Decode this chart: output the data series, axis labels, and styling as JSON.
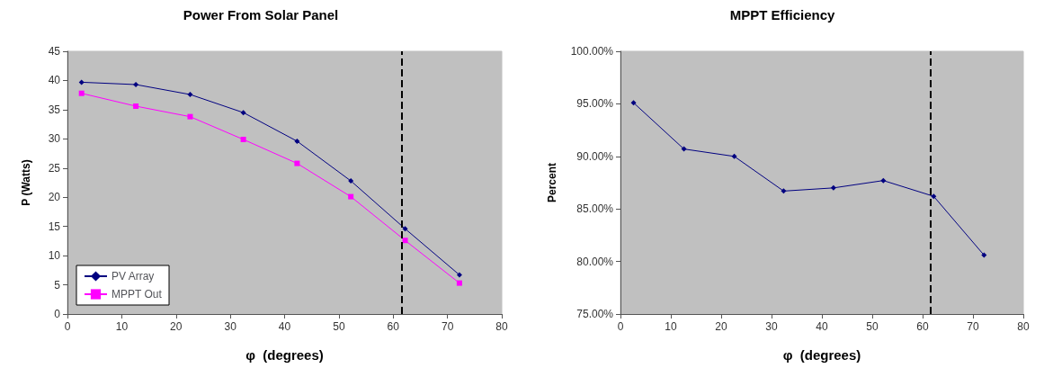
{
  "chart_data": [
    {
      "type": "line",
      "title": "Power From Solar Panel",
      "xlabel": "φ  (degrees)",
      "ylabel": "P (Watts)",
      "x": [
        2.6,
        12.6,
        22.6,
        32.4,
        42.3,
        52.2,
        62.2,
        72.2
      ],
      "series": [
        {
          "name": "PV Array",
          "color": "#000080",
          "marker": "diamond",
          "values": [
            39.7,
            39.3,
            37.6,
            34.5,
            29.6,
            22.8,
            14.6,
            6.7
          ]
        },
        {
          "name": "MPPT Out",
          "color": "#ff00ff",
          "marker": "square",
          "values": [
            37.8,
            35.6,
            33.8,
            29.9,
            25.8,
            20.1,
            12.6,
            5.3
          ]
        }
      ],
      "xlim": [
        0,
        80
      ],
      "xticks": [
        0,
        10,
        20,
        30,
        40,
        50,
        60,
        70,
        80
      ],
      "ylim": [
        0,
        45
      ],
      "yticks": [
        0,
        5,
        10,
        15,
        20,
        25,
        30,
        35,
        40,
        45
      ],
      "grid": false,
      "legend": "bottom left",
      "line_style": "solid",
      "ref_lines": [
        {
          "axis": "x",
          "value": 61.5,
          "color": "#000000",
          "line_style": "dashed"
        }
      ]
    },
    {
      "type": "line",
      "title": "MPPT Efficiency",
      "xlabel": "φ  (degrees)",
      "ylabel": "Percent",
      "x": [
        2.6,
        12.6,
        22.6,
        32.4,
        42.3,
        52.2,
        62.2,
        72.2
      ],
      "series": [
        {
          "color": "#000080",
          "marker": "diamond",
          "values": [
            95.1,
            90.7,
            90.0,
            86.7,
            87.0,
            87.7,
            86.2,
            80.6
          ]
        }
      ],
      "xlim": [
        0,
        80
      ],
      "xticks": [
        0,
        10,
        20,
        30,
        40,
        50,
        60,
        70,
        80
      ],
      "ylim": [
        75,
        100
      ],
      "yticks": [
        {
          "value": 75,
          "label": "75.00%"
        },
        {
          "value": 80,
          "label": "80.00%"
        },
        {
          "value": 85,
          "label": "85.00%"
        },
        {
          "value": 90,
          "label": "90.00%"
        },
        {
          "value": 95,
          "label": "95.00%"
        },
        {
          "value": 100,
          "label": "100.00%"
        }
      ],
      "grid": false,
      "line_style": "solid",
      "ref_lines": [
        {
          "axis": "x",
          "value": 61.5,
          "color": "#000000",
          "line_style": "dashed"
        }
      ]
    }
  ]
}
